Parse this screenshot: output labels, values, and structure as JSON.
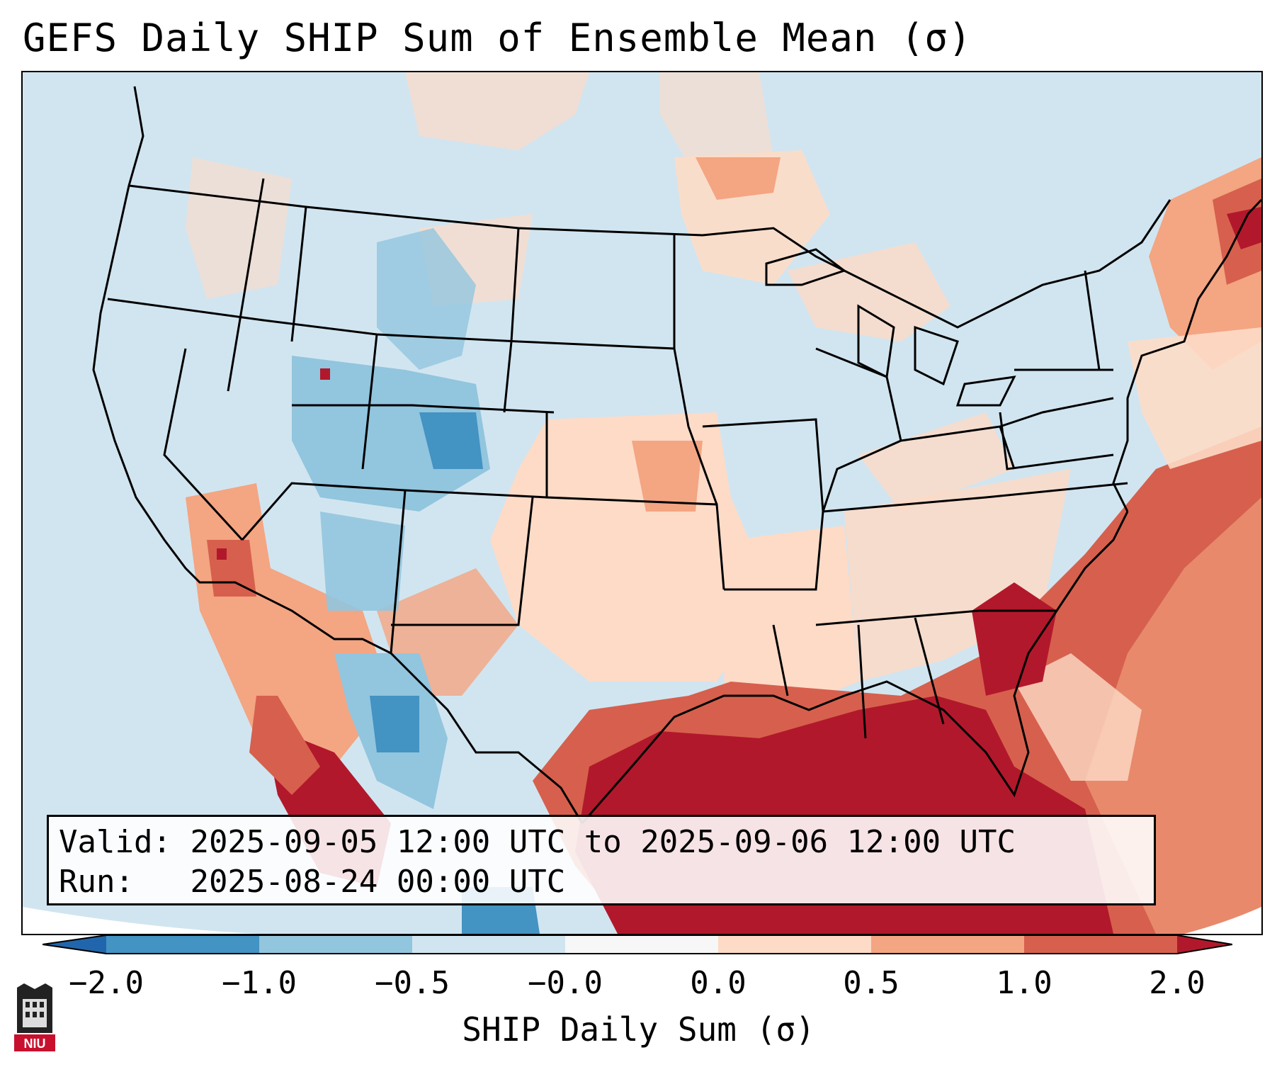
{
  "title": "GEFS Daily SHIP Sum of Ensemble Mean (σ)",
  "info": {
    "valid_label": "Valid:",
    "valid_value": "2025-09-05 12:00 UTC to 2025-09-06 12:00 UTC",
    "run_label": "Run:",
    "run_value": "2025-08-24 00:00 UTC"
  },
  "colorbar": {
    "label": "SHIP Daily Sum (σ)",
    "ticks": [
      "−2.0",
      "−1.0",
      "−0.5",
      "−0.0",
      "0.0",
      "0.5",
      "1.0",
      "2.0"
    ],
    "colors": [
      "#4393c3",
      "#92c5de",
      "#d1e5f0",
      "#f7f7f7",
      "#fddbc7",
      "#f4a582",
      "#d6604d",
      "#b2182b"
    ],
    "under_color": "#2166ac",
    "over_color": "#67001f"
  },
  "logo": {
    "text": "NIU",
    "icon": "niu-logo-icon"
  },
  "map": {
    "region": "Contiguous United States",
    "variable": "SHIP daily sum anomaly"
  }
}
